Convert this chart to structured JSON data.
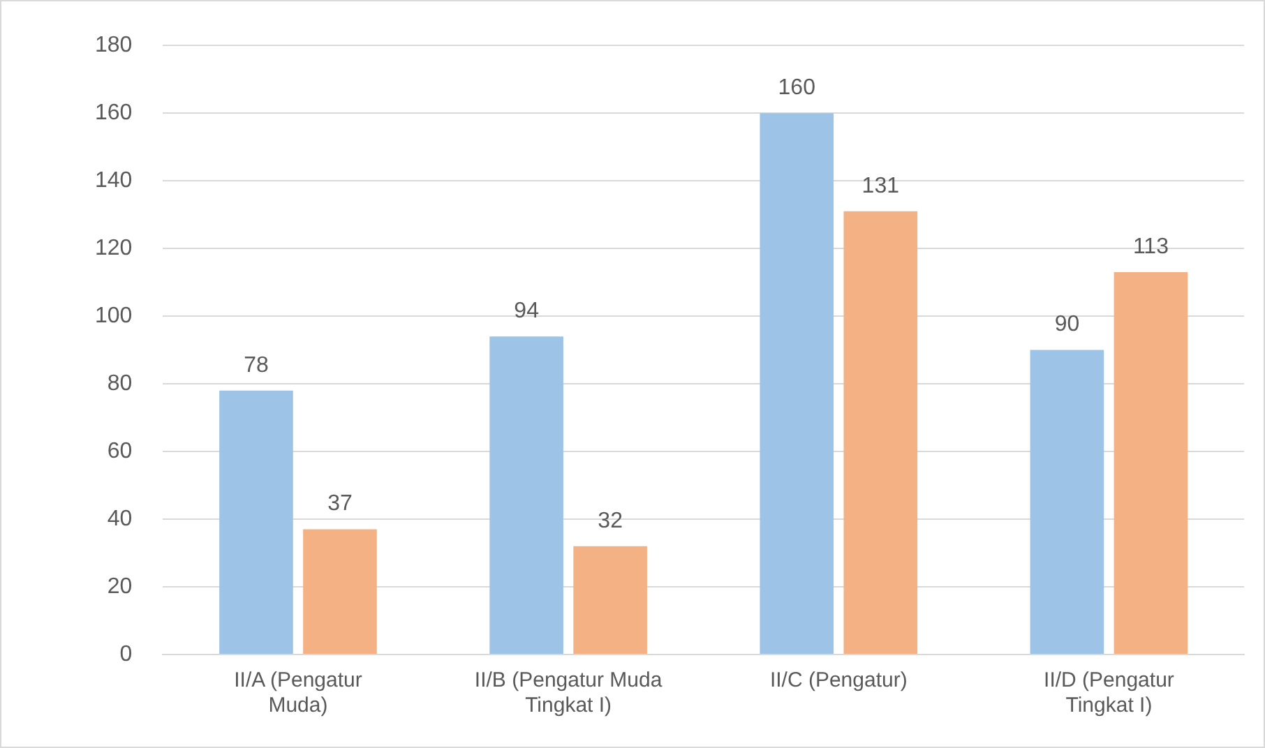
{
  "chart_data": {
    "type": "bar",
    "categories": [
      "II/A (Pengatur Muda)",
      "II/B (Pengatur Muda Tingkat I)",
      "II/C (Pengatur)",
      "II/D (Pengatur Tingkat I)"
    ],
    "series": [
      {
        "color": "#9dc3e6",
        "values": [
          78,
          94,
          160,
          90
        ]
      },
      {
        "color": "#f4b183",
        "values": [
          37,
          32,
          131,
          113
        ]
      }
    ],
    "ylim": [
      0,
      180
    ],
    "yticks": [
      0,
      20,
      40,
      60,
      80,
      100,
      120,
      140,
      160,
      180
    ],
    "grid": "y",
    "data_labels": true,
    "legend": false
  }
}
